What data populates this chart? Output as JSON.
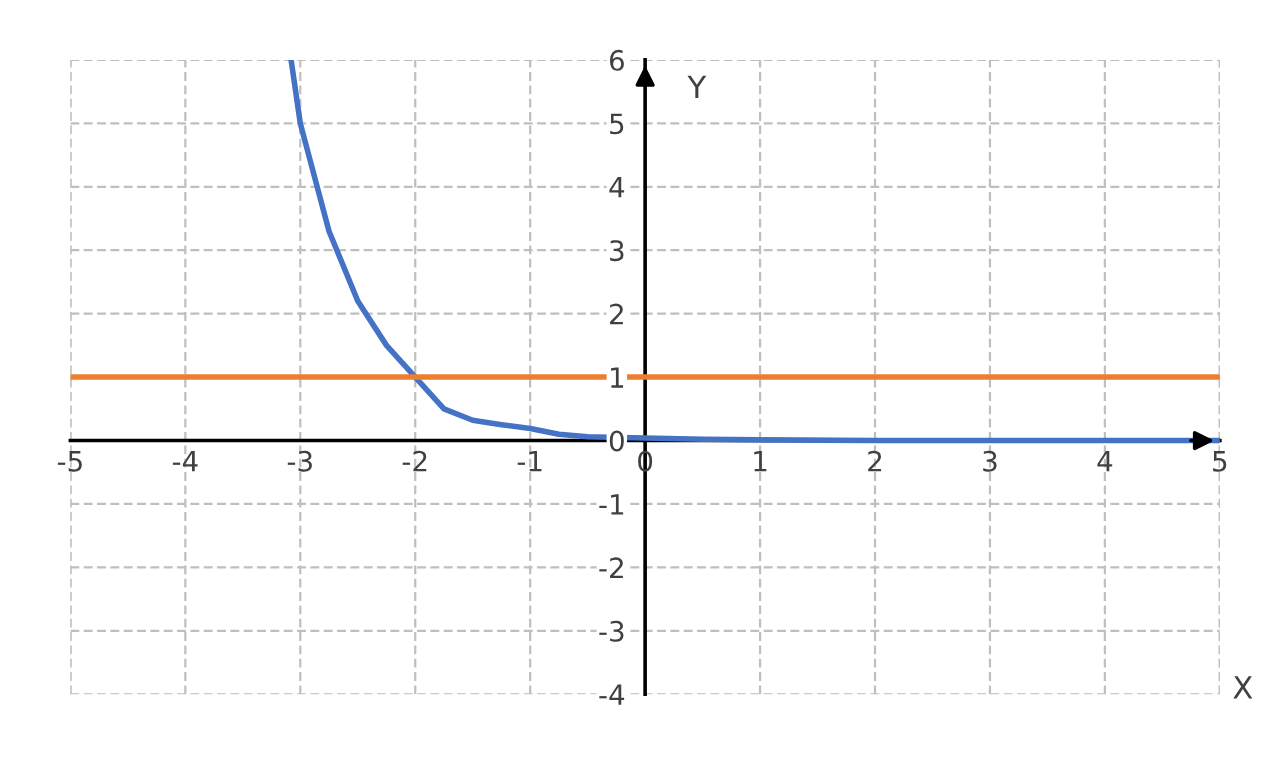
{
  "chart_data": {
    "type": "line",
    "xlabel": "X",
    "ylabel": "Y",
    "xlim": [
      -5,
      5
    ],
    "ylim": [
      -4,
      6
    ],
    "xticks": [
      -5,
      -4,
      -3,
      -2,
      -1,
      0,
      1,
      2,
      3,
      4,
      5
    ],
    "yticks": [
      -4,
      -3,
      -2,
      -1,
      0,
      1,
      2,
      3,
      4,
      5,
      6
    ],
    "grid": true,
    "legend": false,
    "marker": "none",
    "line_style": "solid",
    "series": [
      {
        "color": "#4472c4",
        "x": [
          -3.08,
          -3,
          -2.75,
          -2.5,
          -2.25,
          -2,
          -1.75,
          -1.5,
          -1.25,
          -1,
          -0.75,
          -0.5,
          0,
          0.5,
          1,
          2,
          3,
          4,
          5
        ],
        "values": [
          6,
          5,
          3.3,
          2.2,
          1.5,
          1,
          0.5,
          0.32,
          0.25,
          0.19,
          0.1,
          0.06,
          0.04,
          0.02,
          0.01,
          0,
          0,
          0,
          0
        ]
      },
      {
        "color": "#ed7d31",
        "x": [
          -5,
          5
        ],
        "values": [
          1,
          1
        ]
      }
    ]
  }
}
